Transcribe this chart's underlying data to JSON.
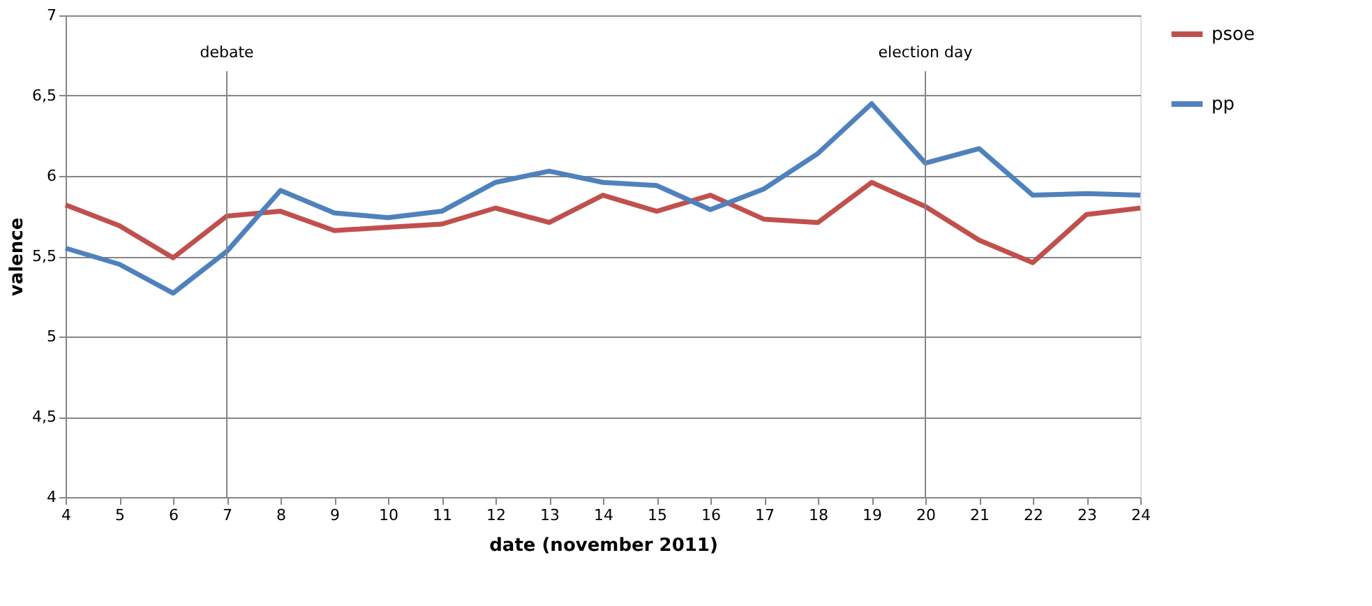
{
  "chart_data": {
    "type": "line",
    "xlabel": "date (november 2011)",
    "ylabel": "valence",
    "x": [
      4,
      5,
      6,
      7,
      8,
      9,
      10,
      11,
      12,
      13,
      14,
      15,
      16,
      17,
      18,
      19,
      20,
      21,
      22,
      23,
      24
    ],
    "series": [
      {
        "name": "psoe",
        "color": "#c0504d",
        "values": [
          5.82,
          5.69,
          5.49,
          5.75,
          5.78,
          5.66,
          5.68,
          5.7,
          5.8,
          5.71,
          5.88,
          5.78,
          5.88,
          5.73,
          5.71,
          5.96,
          5.81,
          5.6,
          5.46,
          5.76,
          5.8
        ]
      },
      {
        "name": "pp",
        "color": "#4f81bd",
        "values": [
          5.55,
          5.45,
          5.27,
          5.53,
          5.91,
          5.77,
          5.74,
          5.78,
          5.96,
          6.03,
          5.96,
          5.94,
          5.79,
          5.92,
          6.14,
          6.45,
          6.08,
          6.17,
          5.88,
          5.89,
          5.88
        ]
      }
    ],
    "xlim": [
      4,
      24
    ],
    "xticks": [
      4,
      5,
      6,
      7,
      8,
      9,
      10,
      11,
      12,
      13,
      14,
      15,
      16,
      17,
      18,
      19,
      20,
      21,
      22,
      23,
      24
    ],
    "ylim": [
      4,
      7
    ],
    "yticks": [
      4,
      {
        "value": 4.5,
        "label": "4,5"
      },
      5,
      {
        "value": 5.5,
        "label": "5,5"
      },
      6,
      {
        "value": 6.5,
        "label": "6,5"
      },
      7
    ],
    "ref_lines": [
      {
        "axis": "x",
        "value": 7,
        "label": "debate",
        "color": "#868686"
      },
      {
        "axis": "x",
        "value": 20,
        "label": "election day",
        "color": "#868686"
      }
    ],
    "grid": "y",
    "legend": "right",
    "marker": "none",
    "line_style": "solid"
  }
}
